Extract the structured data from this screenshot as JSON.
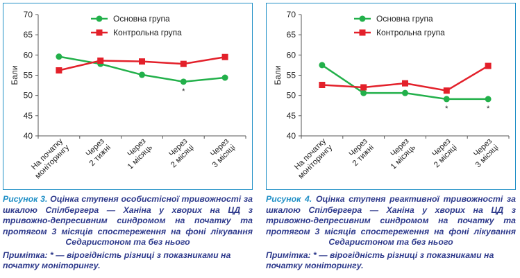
{
  "colors": {
    "group_main": "#22b04a",
    "group_control": "#e3202a",
    "frame": "#1f8fc6",
    "caption": "#2e3a8c"
  },
  "chart_data": [
    {
      "type": "line",
      "ylabel": "Бали",
      "ylim": [
        40,
        70
      ],
      "yticks": [
        "40",
        "45",
        "50",
        "55",
        "60",
        "65",
        "70"
      ],
      "categories": [
        [
          "На початку",
          "моніторингу"
        ],
        [
          "Через",
          "2 тижні"
        ],
        [
          "Через",
          "1 місяць"
        ],
        [
          "Через",
          "2 місяці"
        ],
        [
          "Через",
          "3 місяці"
        ]
      ],
      "series": [
        {
          "name": "Основна група",
          "color": "#22b04a",
          "marker": "circle",
          "values": [
            59.6,
            57.8,
            55.1,
            53.4,
            54.4
          ],
          "significant": [
            false,
            false,
            false,
            true,
            false
          ]
        },
        {
          "name": "Контрольна група",
          "color": "#e3202a",
          "marker": "square",
          "values": [
            56.2,
            58.6,
            58.4,
            57.8,
            59.5
          ],
          "significant": [
            false,
            false,
            false,
            false,
            false
          ]
        }
      ],
      "significance_mark": "*",
      "legend": "top-right",
      "caption": {
        "label": "Рисунок 3.",
        "text": "Оцінка ступеня особистісної тривожності за шкалою Спілбергера — Ханіна у хворих на ЦД з тривожно-депресивним синдромом на початку та протягом 3 місяців спостереження на фоні лікування Седаристоном та без нього",
        "note": "Примітка: * — вірогідність різниці з показниками на початку моніторингу."
      }
    },
    {
      "type": "line",
      "ylabel": "Бали",
      "ylim": [
        40,
        70
      ],
      "yticks": [
        "40",
        "45",
        "50",
        "55",
        "60",
        "65",
        "70"
      ],
      "categories": [
        [
          "На початку",
          "моніторингу"
        ],
        [
          "Через",
          "2 тижні"
        ],
        [
          "Через",
          "1 місяць"
        ],
        [
          "Через",
          "2 місяці"
        ],
        [
          "Через",
          "3 місяці"
        ]
      ],
      "series": [
        {
          "name": "Основна група",
          "color": "#22b04a",
          "marker": "circle",
          "values": [
            57.5,
            50.6,
            50.6,
            49.1,
            49.1
          ],
          "significant": [
            false,
            false,
            false,
            true,
            true
          ]
        },
        {
          "name": "Контрольна група",
          "color": "#e3202a",
          "marker": "square",
          "values": [
            52.6,
            52.0,
            53.0,
            51.2,
            57.3
          ],
          "significant": [
            false,
            false,
            false,
            false,
            false
          ]
        }
      ],
      "significance_mark": "*",
      "legend": "top-right",
      "caption": {
        "label": "Рисунок 4.",
        "text": "Оцінка ступеня реактивної тривожності за шкалою Спілбергера — Ханіна у хворих на ЦД з тривожно-депресивним синдромом на початку та протягом 3 місяців спостереження на фоні лікування Седаристоном та без нього",
        "note": "Примітка: * — вірогідність різниці з показниками на початку моніторингу."
      }
    }
  ]
}
